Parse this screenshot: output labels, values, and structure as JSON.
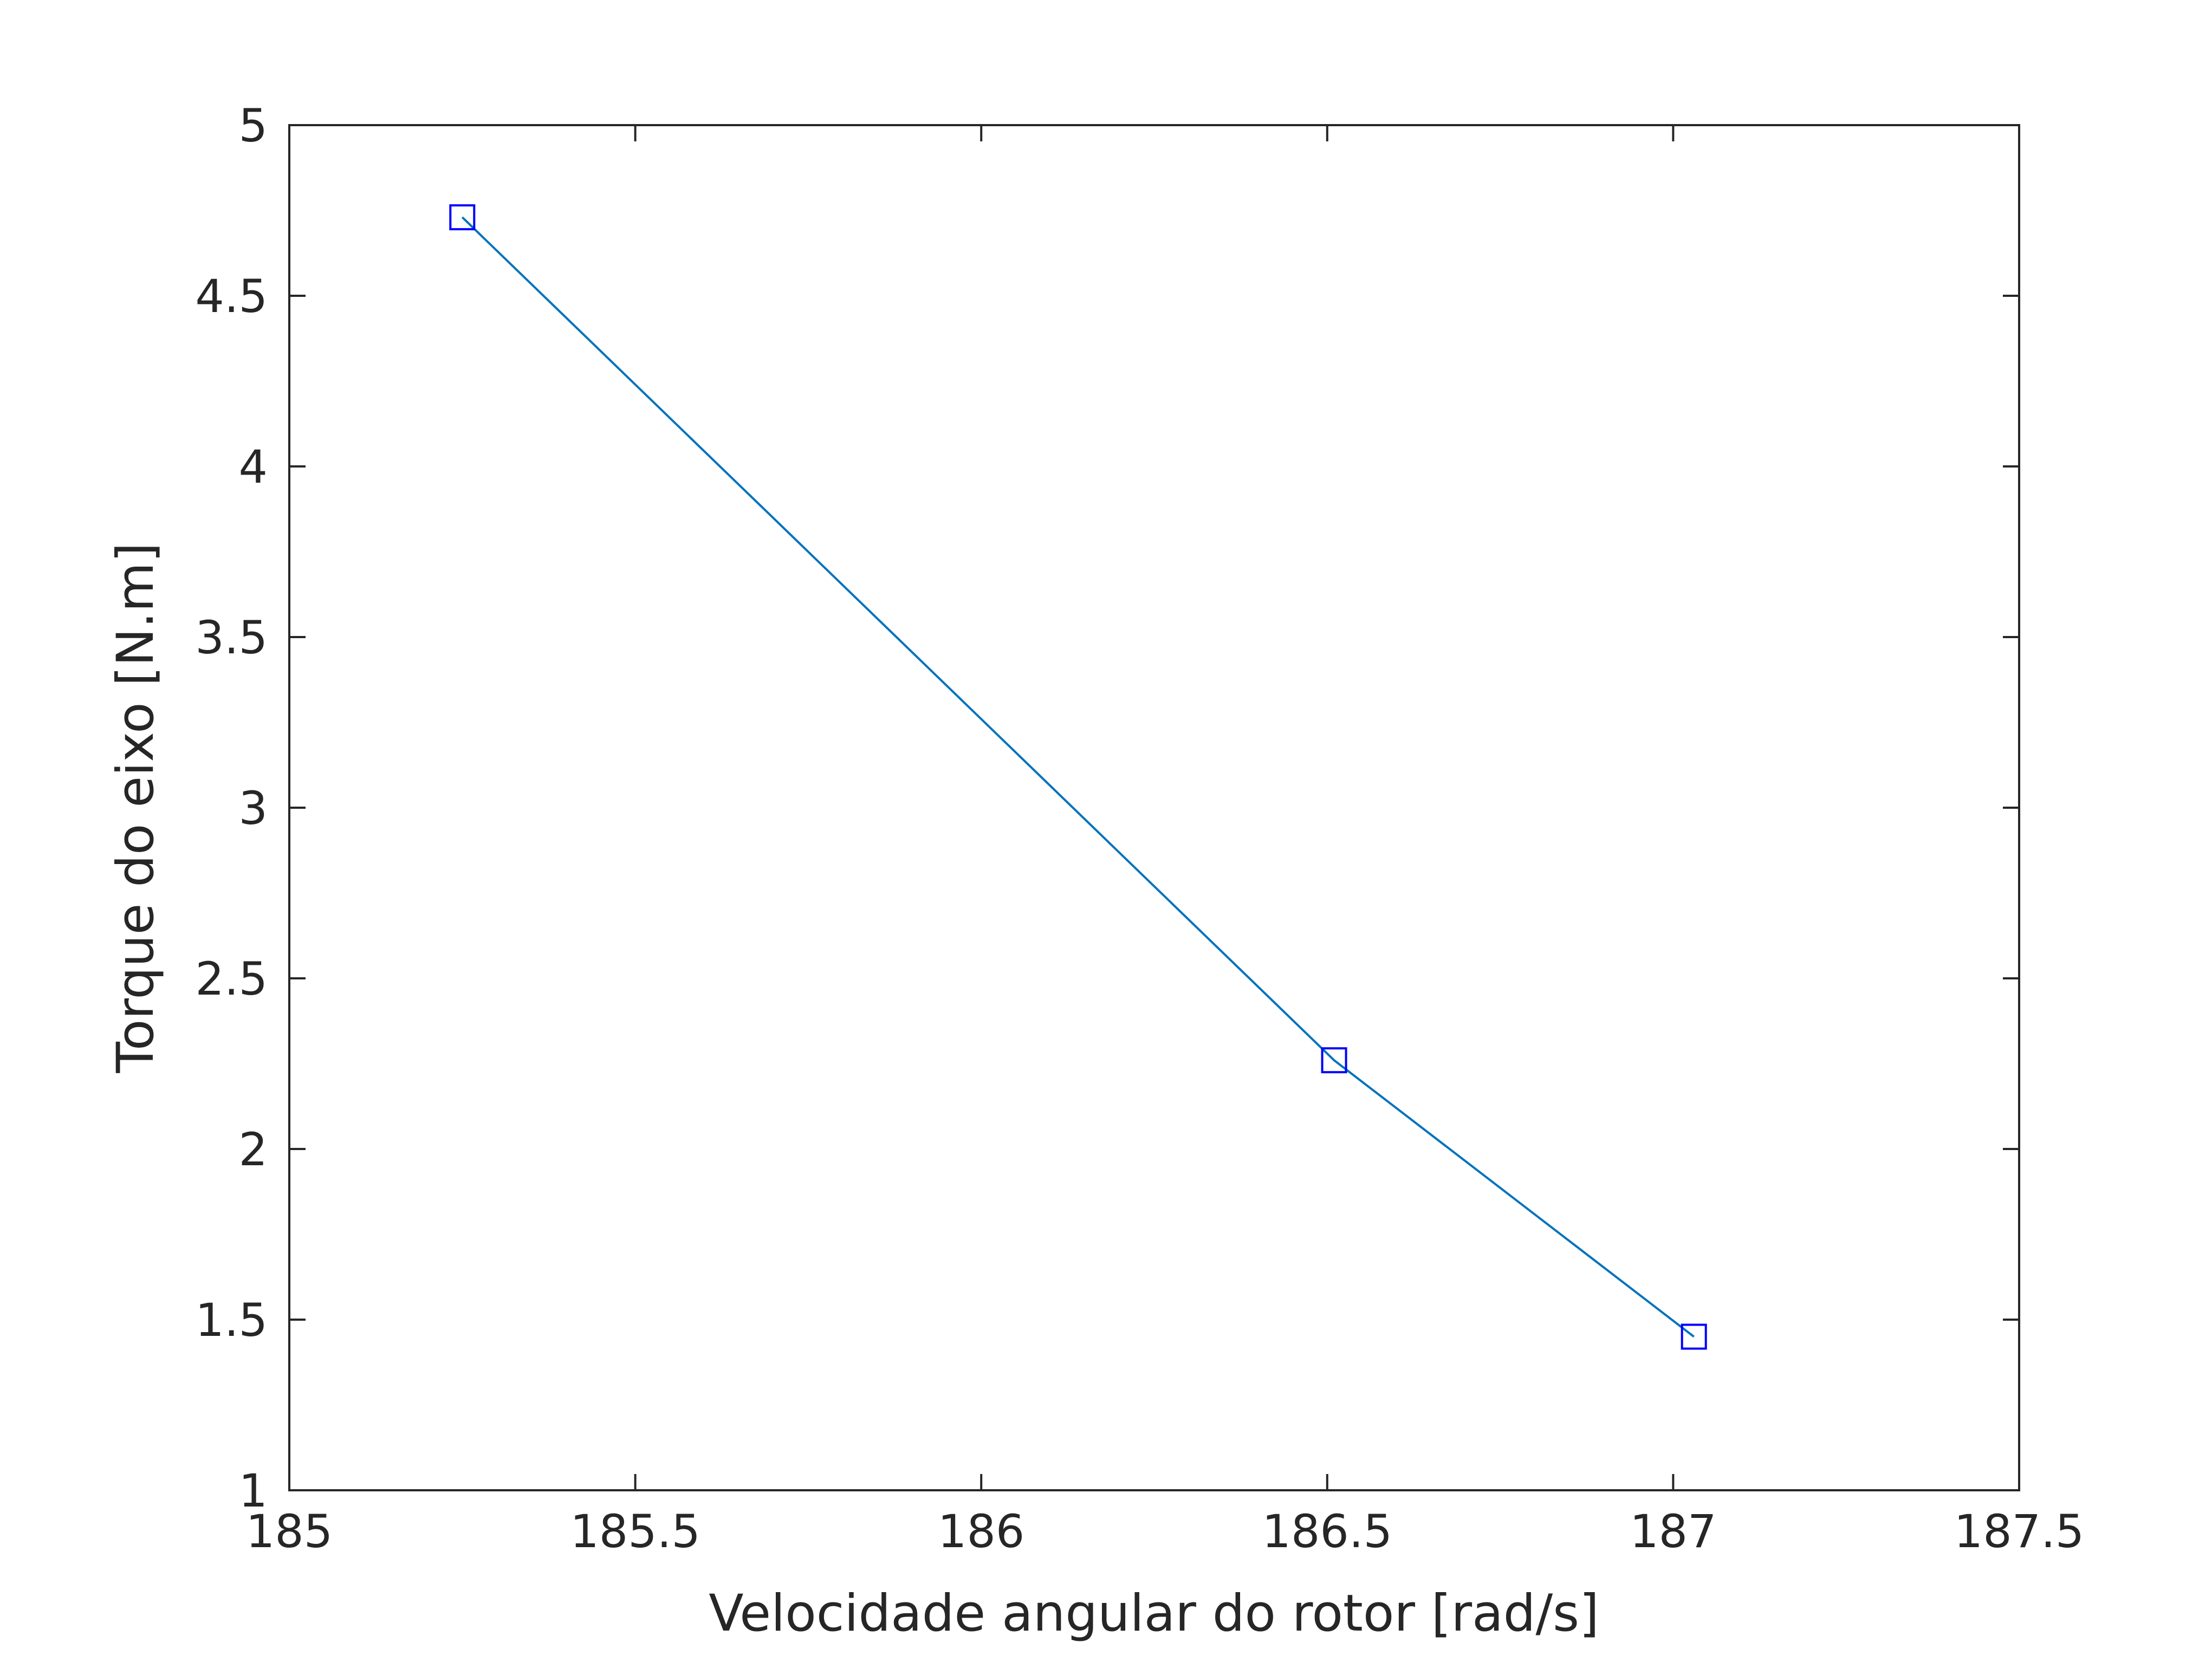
{
  "chart_data": {
    "type": "line",
    "title": "",
    "xlabel": "Velocidade angular do rotor [rad/s]",
    "ylabel": "Torque do eixo [N.m]",
    "xlim": [
      185,
      187.5
    ],
    "ylim": [
      1,
      5
    ],
    "xticks": [
      185,
      185.5,
      186,
      186.5,
      187,
      187.5
    ],
    "xtick_labels": [
      "185",
      "185.5",
      "186",
      "186.5",
      "187",
      "187.5"
    ],
    "yticks": [
      1,
      1.5,
      2,
      2.5,
      3,
      3.5,
      4,
      4.5,
      5
    ],
    "ytick_labels": [
      "1",
      "1.5",
      "2",
      "2.5",
      "3",
      "3.5",
      "4",
      "4.5",
      "5"
    ],
    "grid": false,
    "legend": "none",
    "series": [
      {
        "x": [
          185.25,
          186.51,
          187.03
        ],
        "y": [
          4.73,
          2.26,
          1.45
        ],
        "line_color": "#0072BD",
        "marker": "square",
        "marker_color": "#0000FF"
      }
    ]
  }
}
